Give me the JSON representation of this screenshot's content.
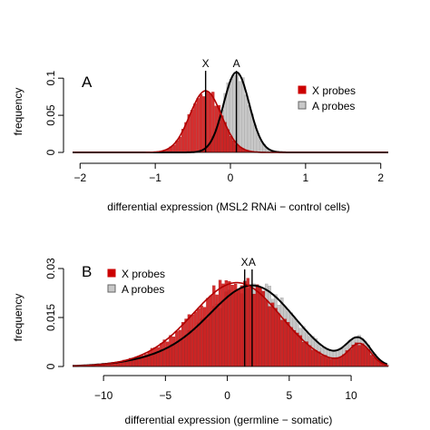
{
  "chart_data": [
    {
      "panel": "A",
      "type": "histogram",
      "xlabel": "differential expression (MSL2 RNAi − control cells)",
      "ylabel": "frequency",
      "xlim": [
        -2.1,
        2.1
      ],
      "ylim": [
        0,
        0.11
      ],
      "xticks": [
        -2,
        -1,
        0,
        1,
        2
      ],
      "xtick_labels": [
        "−2",
        "−1",
        "0",
        "1",
        "2"
      ],
      "yticks": [
        0,
        0.05,
        0.1
      ],
      "ytick_labels": [
        "0",
        "0.05",
        "0.1"
      ],
      "legend_position": "top-right",
      "vlines": [
        {
          "label": "X",
          "x": -0.33
        },
        {
          "label": "A",
          "x": 0.08
        }
      ],
      "series": [
        {
          "name": "X probes",
          "color": "#cc0000",
          "style": "filled-bar",
          "mean": -0.33,
          "sd": 0.21,
          "peak": 0.083
        },
        {
          "name": "A probes",
          "color": "#bdbdbd",
          "style": "open-bar",
          "mean": 0.08,
          "sd": 0.17,
          "peak": 0.108
        }
      ]
    },
    {
      "panel": "B",
      "type": "histogram",
      "xlabel": "differential expression (germline − somatic)",
      "ylabel": "frequency",
      "xlim": [
        -12.5,
        13
      ],
      "ylim": [
        0,
        0.03
      ],
      "xticks": [
        -10,
        -5,
        0,
        5,
        10
      ],
      "xtick_labels": [
        "−10",
        "−5",
        "0",
        "5",
        "10"
      ],
      "yticks": [
        0,
        0.015,
        0.03
      ],
      "ytick_labels": [
        "0",
        "0.015",
        "0.03"
      ],
      "legend_position": "top-left",
      "vlines": [
        {
          "label": "X",
          "x": 1.4
        },
        {
          "label": "A",
          "x": 2.0
        }
      ],
      "series": [
        {
          "name": "X probes",
          "color": "#cc0000",
          "style": "filled-bar",
          "components": [
            {
              "weight": 0.78,
              "mean": 1.1,
              "sd": 3.4
            },
            {
              "weight": 0.16,
              "mean": -2.5,
              "sd": 3.8
            },
            {
              "weight": 0.06,
              "mean": 10.7,
              "sd": 0.9
            }
          ]
        },
        {
          "name": "A probes",
          "color": "#bdbdbd",
          "style": "open-bar",
          "components": [
            {
              "weight": 0.75,
              "mean": 2.3,
              "sd": 3.3
            },
            {
              "weight": 0.17,
              "mean": -2.5,
              "sd": 4.0
            },
            {
              "weight": 0.08,
              "mean": 10.6,
              "sd": 1.0
            }
          ]
        }
      ]
    }
  ]
}
